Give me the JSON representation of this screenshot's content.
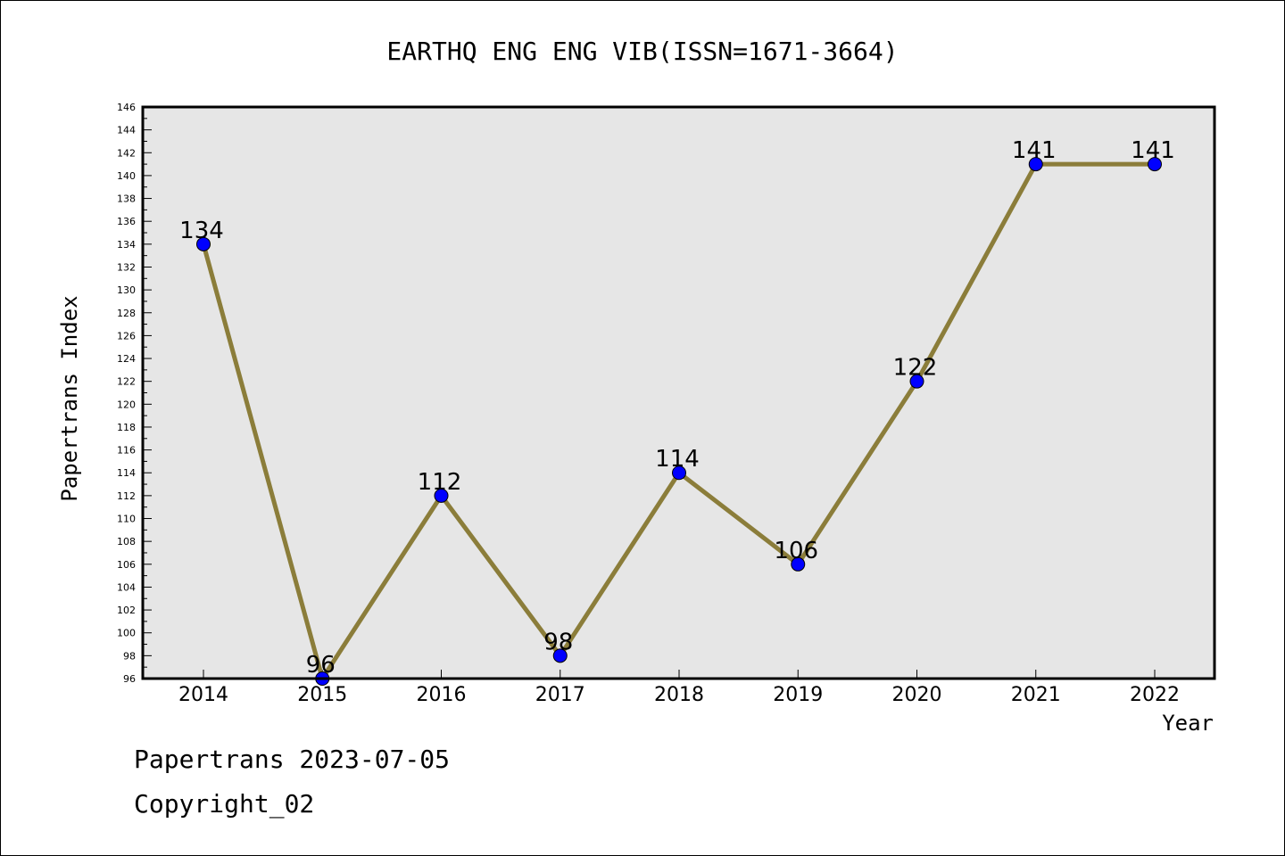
{
  "chart_data": {
    "type": "line",
    "title": "EARTHQ ENG ENG VIB(ISSN=1671-3664)",
    "xlabel": "Year",
    "ylabel": "Papertrans Index",
    "categories": [
      "2014",
      "2015",
      "2016",
      "2017",
      "2018",
      "2019",
      "2020",
      "2021",
      "2022"
    ],
    "values": [
      134,
      96,
      112,
      98,
      114,
      106,
      122,
      141,
      141
    ],
    "data_labels": [
      "134",
      "96",
      "112",
      "98",
      "114",
      "106",
      "122",
      "141",
      "141"
    ],
    "ylim": [
      96,
      146
    ],
    "y_major_step": 2,
    "y_tick_labels": [
      "96",
      "98",
      "100",
      "102",
      "104",
      "106",
      "108",
      "110",
      "112",
      "114",
      "116",
      "118",
      "120",
      "122",
      "124",
      "126",
      "128",
      "130",
      "132",
      "134",
      "136",
      "138",
      "140",
      "142",
      "144",
      "146"
    ],
    "grid": false,
    "legend": "none",
    "colors": {
      "line": "#8b7d3a",
      "marker_fill": "#0000ff",
      "plot_background": "#e6e6e6",
      "axis": "#000000"
    }
  },
  "footer": {
    "line1": "Papertrans 2023-07-05",
    "line2": "Copyright_02"
  }
}
